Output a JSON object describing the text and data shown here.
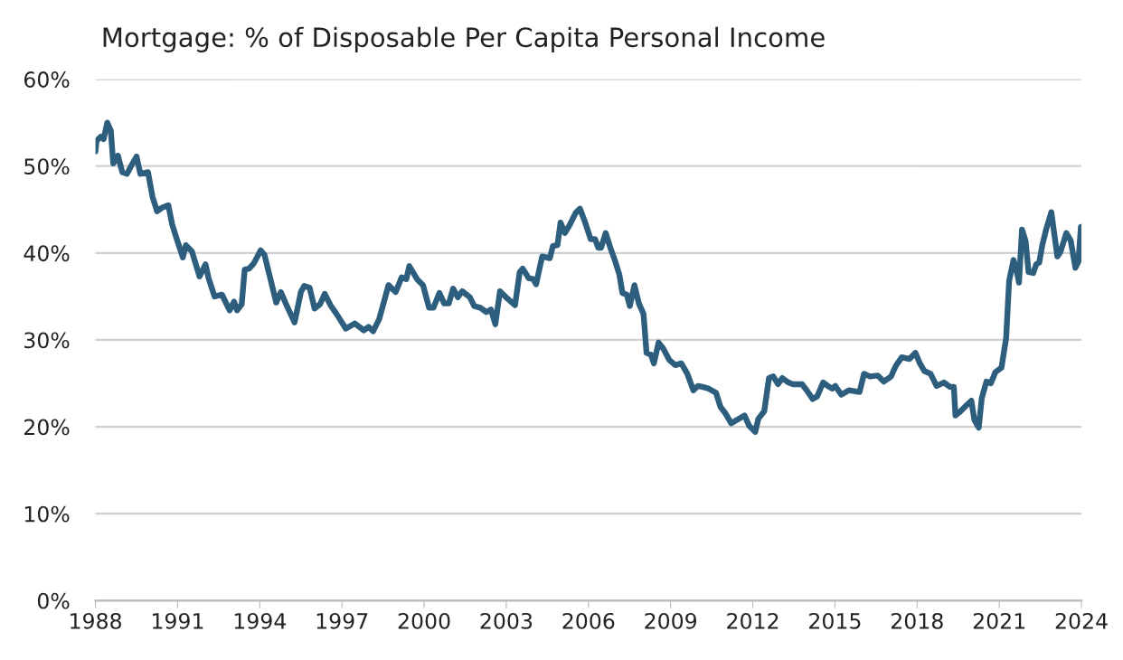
{
  "chart_data": {
    "type": "line",
    "title": "Mortgage: % of Disposable Per Capita Personal Income",
    "x": [
      1988.0,
      1988.04,
      1988.2,
      1988.3,
      1988.43,
      1988.56,
      1988.65,
      1988.82,
      1988.98,
      1989.15,
      1989.3,
      1989.5,
      1989.64,
      1989.92,
      1990.08,
      1990.25,
      1990.42,
      1990.66,
      1990.8,
      1990.97,
      1991.19,
      1991.3,
      1991.52,
      1991.8,
      1992.02,
      1992.13,
      1992.35,
      1992.62,
      1992.9,
      1993.06,
      1993.17,
      1993.34,
      1993.45,
      1993.61,
      1993.78,
      1994.03,
      1994.17,
      1994.39,
      1994.6,
      1994.77,
      1994.99,
      1995.27,
      1995.5,
      1995.62,
      1995.82,
      1996.0,
      1996.2,
      1996.37,
      1996.6,
      1996.8,
      1997.14,
      1997.47,
      1997.8,
      1997.97,
      1998.14,
      1998.36,
      1998.7,
      1998.96,
      1999.18,
      1999.35,
      1999.46,
      1999.74,
      1999.96,
      2000.18,
      2000.34,
      2000.56,
      2000.73,
      2000.9,
      2001.06,
      2001.23,
      2001.39,
      2001.67,
      2001.83,
      2002.05,
      2002.27,
      2002.44,
      2002.6,
      2002.77,
      2002.99,
      2003.32,
      2003.49,
      2003.6,
      2003.82,
      2003.98,
      2004.09,
      2004.31,
      2004.59,
      2004.7,
      2004.87,
      2004.98,
      2005.14,
      2005.31,
      2005.53,
      2005.69,
      2005.86,
      2006.08,
      2006.24,
      2006.36,
      2006.46,
      2006.63,
      2006.8,
      2006.96,
      2007.13,
      2007.24,
      2007.4,
      2007.51,
      2007.68,
      2007.84,
      2008.01,
      2008.12,
      2008.28,
      2008.39,
      2008.56,
      2008.73,
      2008.95,
      2009.17,
      2009.39,
      2009.61,
      2009.83,
      2010.0,
      2010.16,
      2010.38,
      2010.66,
      2010.82,
      2010.99,
      2011.21,
      2011.7,
      2011.87,
      2012.09,
      2012.2,
      2012.42,
      2012.59,
      2012.75,
      2012.92,
      2013.08,
      2013.3,
      2013.47,
      2013.8,
      2013.97,
      2014.19,
      2014.35,
      2014.57,
      2014.74,
      2014.9,
      2015.01,
      2015.23,
      2015.51,
      2015.9,
      2016.06,
      2016.28,
      2016.56,
      2016.78,
      2017.05,
      2017.22,
      2017.44,
      2017.72,
      2017.94,
      2018.1,
      2018.27,
      2018.49,
      2018.71,
      2018.98,
      2019.2,
      2019.34,
      2019.4,
      2019.59,
      2019.81,
      2019.98,
      2020.09,
      2020.25,
      2020.36,
      2020.53,
      2020.69,
      2020.86,
      2021.08,
      2021.25,
      2021.36,
      2021.52,
      2021.63,
      2021.72,
      2021.83,
      2021.96,
      2022.07,
      2022.24,
      2022.35,
      2022.46,
      2022.57,
      2022.71,
      2022.9,
      2023.12,
      2023.23,
      2023.45,
      2023.61,
      2023.78,
      2023.89,
      2023.98
    ],
    "series": [
      {
        "color": "#2d5e7e",
        "values": [
          51.7,
          52.9,
          53.4,
          53.1,
          55.0,
          54.1,
          50.3,
          51.2,
          49.3,
          49.1,
          50.0,
          51.1,
          49.1,
          49.3,
          46.5,
          44.8,
          45.2,
          45.5,
          43.3,
          41.6,
          39.5,
          40.9,
          40.2,
          37.3,
          38.7,
          37.1,
          35.0,
          35.2,
          33.4,
          34.4,
          33.4,
          34.1,
          38.1,
          38.2,
          38.8,
          40.3,
          39.8,
          37.0,
          34.3,
          35.5,
          33.9,
          32.0,
          35.5,
          36.2,
          36.0,
          33.6,
          34.1,
          35.3,
          33.9,
          33.0,
          31.3,
          31.9,
          31.1,
          31.5,
          31.0,
          32.4,
          36.3,
          35.5,
          37.2,
          37.0,
          38.5,
          37.0,
          36.3,
          33.7,
          33.7,
          35.4,
          34.2,
          34.2,
          35.9,
          34.9,
          35.6,
          34.9,
          33.9,
          33.7,
          33.2,
          33.5,
          31.8,
          35.6,
          34.9,
          34.0,
          37.8,
          38.2,
          37.1,
          37.0,
          36.4,
          39.6,
          39.4,
          40.8,
          40.9,
          43.5,
          42.3,
          43.2,
          44.6,
          45.1,
          43.7,
          41.6,
          41.6,
          40.6,
          40.6,
          42.3,
          40.6,
          39.2,
          37.5,
          35.4,
          35.2,
          33.9,
          36.3,
          34.2,
          33.0,
          28.5,
          28.3,
          27.3,
          29.7,
          29.0,
          27.7,
          27.1,
          27.3,
          26.1,
          24.2,
          24.7,
          24.6,
          24.4,
          23.9,
          22.3,
          21.6,
          20.4,
          21.3,
          20.1,
          19.4,
          20.9,
          21.8,
          25.6,
          25.8,
          24.9,
          25.6,
          25.1,
          24.9,
          24.9,
          24.2,
          23.2,
          23.5,
          25.1,
          24.7,
          24.4,
          24.7,
          23.7,
          24.2,
          24.0,
          26.1,
          25.8,
          25.9,
          25.2,
          25.8,
          27.0,
          28.0,
          27.8,
          28.5,
          27.3,
          26.4,
          26.1,
          24.7,
          25.1,
          24.6,
          24.6,
          21.3,
          21.8,
          22.5,
          23.0,
          20.8,
          19.9,
          23.3,
          25.2,
          25.0,
          26.3,
          26.8,
          30.2,
          36.8,
          39.2,
          38.0,
          36.6,
          42.7,
          41.4,
          37.8,
          37.7,
          38.7,
          38.9,
          40.9,
          42.7,
          44.7,
          39.6,
          40.1,
          42.3,
          41.4,
          38.3,
          39.0,
          43.0
        ]
      }
    ],
    "xlim": [
      1988,
      2024
    ],
    "xticks": [
      1988,
      1991,
      1994,
      1997,
      2000,
      2003,
      2006,
      2009,
      2012,
      2015,
      2018,
      2021,
      2024
    ],
    "ylim": [
      0,
      60
    ],
    "yticks": [
      {
        "value": 0,
        "label": "0%"
      },
      {
        "value": 10,
        "label": "10%"
      },
      {
        "value": 20,
        "label": "20%"
      },
      {
        "value": 30,
        "label": "30%"
      },
      {
        "value": 40,
        "label": "40%"
      },
      {
        "value": 50,
        "label": "50%"
      },
      {
        "value": 60,
        "label": "60%"
      }
    ],
    "grid": "y",
    "line_style": "solid",
    "marker": "none"
  }
}
